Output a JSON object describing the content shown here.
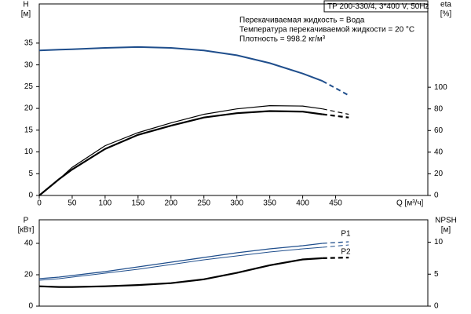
{
  "chart_data": [
    {
      "type": "line",
      "title": "TP 200-330/4, 3*400 V, 50Hz",
      "annotations": [
        "Перекачиваемая жидкость = Вода",
        "Температура перекачиваемой жидкости = 20 °C",
        "Плотность = 998.2 кг/м³"
      ],
      "xlabel": "Q [м³/ч]",
      "ylabel": "H",
      "yunit": "[м]",
      "y2label": "eta",
      "y2unit": "[%]",
      "x": [
        0,
        30,
        50,
        100,
        150,
        200,
        250,
        300,
        350,
        400,
        430,
        470
      ],
      "xlim": [
        0,
        590
      ],
      "xticks": [
        0,
        50,
        100,
        150,
        200,
        250,
        300,
        350,
        400,
        450
      ],
      "ylim": [
        0,
        44
      ],
      "yticks": [
        0,
        5,
        10,
        15,
        20,
        25,
        30,
        35
      ],
      "y2lim": [
        0,
        177
      ],
      "y2ticks": [
        0,
        20,
        40,
        60,
        80,
        100
      ],
      "dash_from_x": 430,
      "series": [
        {
          "color": "#1f4e8c",
          "width": 2,
          "axis": "y",
          "values": [
            33.3,
            33.5,
            33.6,
            33.9,
            34.1,
            33.9,
            33.3,
            32.2,
            30.4,
            28,
            26.3,
            23
          ]
        },
        {
          "color": "#000000",
          "width": 1.2,
          "axis": "y2",
          "values": [
            0,
            15,
            26,
            46,
            58,
            67,
            75,
            80,
            83,
            82.6,
            80,
            75
          ]
        },
        {
          "color": "#000000",
          "width": 2.2,
          "axis": "y2",
          "values": [
            0,
            15,
            24,
            43,
            56,
            64.5,
            72,
            76,
            78,
            77.5,
            75,
            72
          ]
        }
      ]
    },
    {
      "type": "line",
      "ylabel": "P",
      "yunit": "[кВт]",
      "y2label": "NPSH",
      "y2unit": "[м]",
      "x": [
        0,
        30,
        50,
        100,
        150,
        200,
        250,
        300,
        350,
        400,
        430,
        470
      ],
      "xlim": [
        0,
        590
      ],
      "ylim": [
        0,
        55
      ],
      "yticks": [
        0,
        20,
        40
      ],
      "y2lim": [
        0,
        13.5
      ],
      "y2ticks": [
        0,
        5,
        10
      ],
      "dash_from_x": 430,
      "series": [
        {
          "name": "P1",
          "color": "#1f4e8c",
          "width": 1.3,
          "axis": "y",
          "values": [
            17.5,
            18.5,
            19.5,
            22,
            25,
            28,
            31,
            34,
            36.5,
            38.5,
            40,
            41
          ]
        },
        {
          "name": "P2",
          "color": "#1f4e8c",
          "width": 1,
          "axis": "y",
          "values": [
            16.5,
            17.5,
            18.5,
            21,
            23.5,
            26.5,
            29.5,
            32,
            34.5,
            36.5,
            37.5,
            39
          ]
        },
        {
          "color": "#000000",
          "width": 2.2,
          "axis": "y2",
          "values": [
            3.1,
            3.0,
            3.0,
            3.1,
            3.3,
            3.6,
            4.2,
            5.2,
            6.4,
            7.3,
            7.5,
            7.6
          ]
        }
      ]
    }
  ]
}
